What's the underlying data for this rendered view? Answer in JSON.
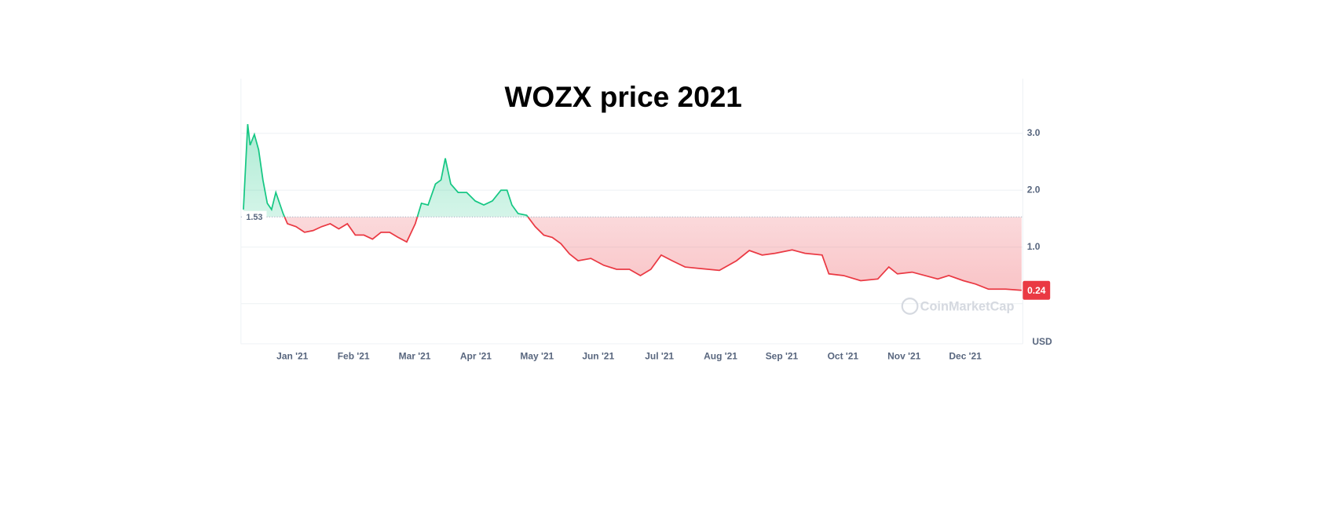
{
  "chart_data": {
    "type": "line",
    "title": "WOZX price 2021",
    "watermark": "CoinMarketCap",
    "currency": "USD",
    "baseline": 1.53,
    "up_color": "#16c784",
    "down_color": "#ea3943",
    "x": [
      -0.8,
      -0.73,
      -0.69,
      -0.62,
      -0.55,
      -0.48,
      -0.41,
      -0.34,
      -0.27,
      -0.15,
      -0.08,
      0.06,
      0.2,
      0.34,
      0.48,
      0.62,
      0.76,
      0.9,
      1.03,
      1.17,
      1.31,
      1.45,
      1.59,
      1.73,
      1.87,
      2.01,
      2.11,
      2.22,
      2.34,
      2.43,
      2.5,
      2.59,
      2.71,
      2.85,
      2.99,
      3.13,
      3.27,
      3.41,
      3.51,
      3.59,
      3.69,
      3.83,
      3.97,
      4.11,
      4.25,
      4.39,
      4.53,
      4.67,
      4.88,
      5.09,
      5.3,
      5.51,
      5.69,
      5.86,
      6.03,
      6.21,
      6.42,
      6.7,
      6.98,
      7.26,
      7.47,
      7.68,
      7.89,
      8.17,
      8.38,
      8.66,
      8.77,
      9.01,
      9.29,
      9.57,
      9.75,
      9.89,
      10.13,
      10.34,
      10.55,
      10.73,
      10.97,
      11.17,
      11.38,
      11.66,
      11.92
    ],
    "values": [
      1.66,
      3.16,
      2.79,
      2.98,
      2.71,
      2.18,
      1.77,
      1.66,
      1.96,
      1.59,
      1.41,
      1.36,
      1.26,
      1.29,
      1.36,
      1.41,
      1.32,
      1.41,
      1.21,
      1.21,
      1.14,
      1.26,
      1.26,
      1.17,
      1.09,
      1.41,
      1.77,
      1.74,
      2.11,
      2.18,
      2.56,
      2.11,
      1.96,
      1.96,
      1.81,
      1.74,
      1.81,
      2.0,
      2.0,
      1.74,
      1.59,
      1.56,
      1.36,
      1.21,
      1.17,
      1.06,
      0.88,
      0.76,
      0.8,
      0.68,
      0.61,
      0.61,
      0.5,
      0.61,
      0.86,
      0.76,
      0.65,
      0.62,
      0.59,
      0.76,
      0.94,
      0.86,
      0.89,
      0.95,
      0.89,
      0.86,
      0.53,
      0.5,
      0.41,
      0.44,
      0.65,
      0.53,
      0.56,
      0.5,
      0.44,
      0.5,
      0.41,
      0.35,
      0.26,
      0.26,
      0.24
    ],
    "xlim": [
      -0.84,
      11.94
    ],
    "ylim": [
      -0.7,
      3.96
    ],
    "xticks": [
      {
        "value": 0,
        "label": "Jan '21"
      },
      {
        "value": 1,
        "label": "Feb '21"
      },
      {
        "value": 2,
        "label": "Mar '21"
      },
      {
        "value": 3,
        "label": "Apr '21"
      },
      {
        "value": 4,
        "label": "May '21"
      },
      {
        "value": 5,
        "label": "Jun '21"
      },
      {
        "value": 6,
        "label": "Jul '21"
      },
      {
        "value": 7,
        "label": "Aug '21"
      },
      {
        "value": 8,
        "label": "Sep '21"
      },
      {
        "value": 9,
        "label": "Oct '21"
      },
      {
        "value": 10,
        "label": "Nov '21"
      },
      {
        "value": 11,
        "label": "Dec '21"
      }
    ],
    "yticks": [
      {
        "value": 1,
        "label": "1.0"
      },
      {
        "value": 2,
        "label": "2.0"
      },
      {
        "value": 3,
        "label": "3.0"
      }
    ],
    "grid": true
  }
}
